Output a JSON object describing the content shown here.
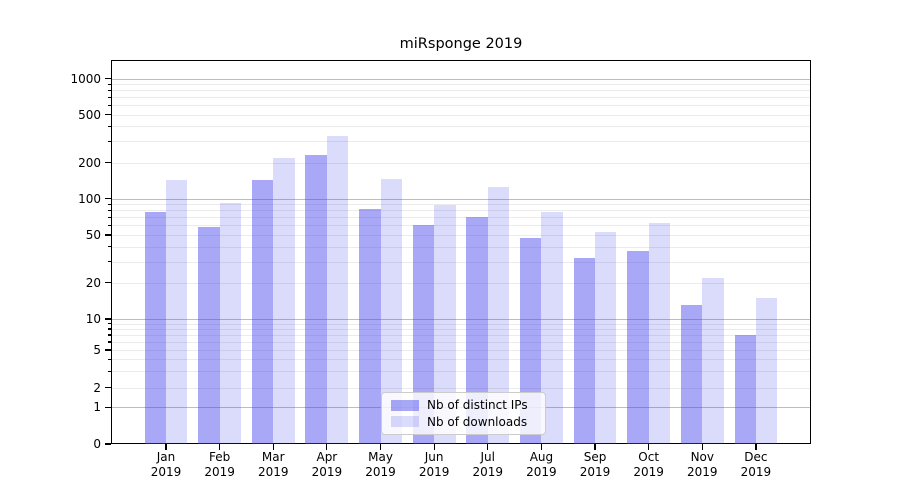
{
  "title": "miRsponge 2019",
  "chart_data": {
    "type": "bar",
    "title": "miRsponge 2019",
    "categories": [
      "Jan 2019",
      "Feb 2019",
      "Mar 2019",
      "Apr 2019",
      "May 2019",
      "Jun 2019",
      "Jul 2019",
      "Aug 2019",
      "Sep 2019",
      "Oct 2019",
      "Nov 2019",
      "Dec 2019"
    ],
    "series": [
      {
        "name": "Nb of distinct IPs",
        "values": [
          78,
          58,
          144,
          232,
          82,
          61,
          70,
          47,
          32,
          37,
          13,
          7
        ],
        "color": "rgba(62,62,235,0.45)"
      },
      {
        "name": "Nb of downloads",
        "values": [
          143,
          92,
          217,
          330,
          146,
          89,
          125,
          78,
          53,
          63,
          22,
          15
        ],
        "color": "rgba(62,62,235,0.19)"
      }
    ],
    "xlabel": "",
    "ylabel": "",
    "yscale": "symlog",
    "yticks": [
      0,
      1,
      2,
      5,
      10,
      20,
      50,
      100,
      200,
      500,
      1000
    ],
    "ytick_labels": [
      "0",
      "1",
      "2",
      "5",
      "10",
      "20",
      "50",
      "100",
      "200",
      "500",
      "1000"
    ],
    "major_grid_values": [
      1,
      10,
      100,
      1000
    ],
    "minor_grid_values": [
      2,
      3,
      4,
      5,
      6,
      7,
      8,
      9,
      20,
      30,
      40,
      50,
      60,
      70,
      80,
      90,
      200,
      300,
      400,
      500,
      600,
      700,
      800,
      900
    ],
    "ylim": [
      0,
      1400
    ],
    "grid": true,
    "legend_position": "lower center"
  },
  "colors": {
    "bar_distinct_ips": "rgba(62,62,235,0.45)",
    "bar_downloads": "rgba(62,62,235,0.19)",
    "grid_major": "#bdbdbd",
    "grid_minor": "#ebebeb",
    "axis": "#000000",
    "background": "#ffffff"
  }
}
